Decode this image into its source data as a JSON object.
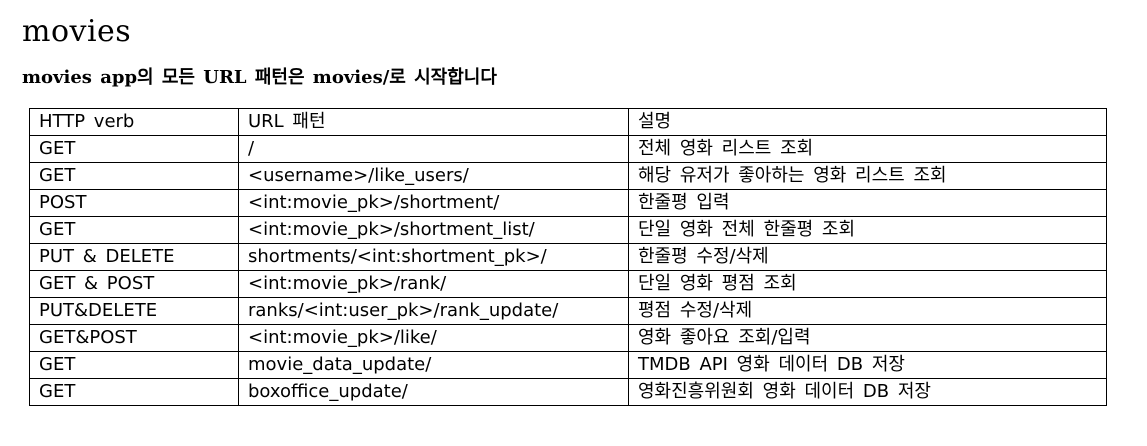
{
  "title": "movies",
  "subtitle": "movies app의 모든 URL 패턴은 movies/로 시작합니다",
  "table": {
    "header": {
      "verb": "HTTP verb",
      "url": "URL 패턴",
      "desc": "설명"
    },
    "rows": [
      {
        "verb": "GET",
        "url": "/",
        "desc": "전체 영화 리스트 조회"
      },
      {
        "verb": "GET",
        "url": "<username>/like_users/",
        "desc": "해당 유저가 좋아하는 영화 리스트 조회"
      },
      {
        "verb": "POST",
        "url": "<int:movie_pk>/shortment/",
        "desc": "한줄평 입력"
      },
      {
        "verb": "GET",
        "url": "<int:movie_pk>/shortment_list/",
        "desc": "단일 영화 전체 한줄평 조회"
      },
      {
        "verb": "PUT & DELETE",
        "url": "shortments/<int:shortment_pk>/",
        "desc": "한줄평 수정/삭제"
      },
      {
        "verb": "GET & POST",
        "url": "<int:movie_pk>/rank/",
        "desc": "단일 영화 평점 조회"
      },
      {
        "verb": "PUT&DELETE",
        "url": "ranks/<int:user_pk>/rank_update/",
        "desc": "평점 수정/삭제"
      },
      {
        "verb": "GET&POST",
        "url": "<int:movie_pk>/like/",
        "desc": "영화 좋아요 조회/입력"
      },
      {
        "verb": "GET",
        "url": "movie_data_update/",
        "desc": "TMDB API 영화 데이터 DB 저장"
      },
      {
        "verb": "GET",
        "url": "boxoffice_update/",
        "desc": "영화진흥위원회 영화 데이터 DB 저장"
      }
    ]
  }
}
